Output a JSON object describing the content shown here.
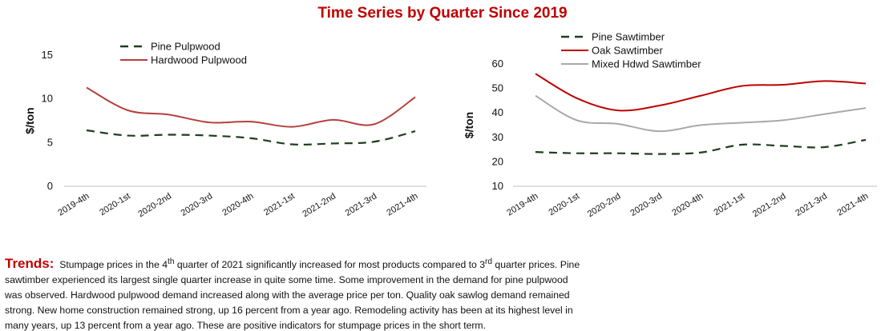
{
  "title": "Time Series by Quarter Since 2019",
  "colors": {
    "title": "#c00000",
    "pine": "#1e3d1e",
    "oak": "#c00000",
    "hardwood_pulp": "#b5403c",
    "mixed": "#a9a9a9",
    "trends_label": "#c00000"
  },
  "chart_data": [
    {
      "type": "line",
      "x": [
        "2019-4th",
        "2020-1st",
        "2020-2nd",
        "2020-3rd",
        "2020-4th",
        "2021-1st",
        "2021-2nd",
        "2021-3rd",
        "2021-4th"
      ],
      "ylabel": "$/ton",
      "ylim": [
        0,
        15
      ],
      "yticks": [
        0,
        5,
        10,
        15
      ],
      "legend_position": "top",
      "series": [
        {
          "name": "Pine Pulpwood",
          "style": "dashed",
          "values": [
            6.4,
            5.8,
            5.9,
            5.8,
            5.5,
            4.8,
            4.9,
            5.1,
            6.3
          ]
        },
        {
          "name": "Hardwood Pulpwood",
          "style": "solid",
          "values": [
            11.3,
            8.7,
            8.2,
            7.3,
            7.4,
            6.8,
            7.6,
            7.1,
            10.2
          ]
        }
      ]
    },
    {
      "type": "line",
      "x": [
        "2019-4th",
        "2020-1st",
        "2020-2nd",
        "2020-3rd",
        "2020-4th",
        "2021-1st",
        "2021-2nd",
        "2021-3rd",
        "2021-4th"
      ],
      "ylabel": "$/ton",
      "ylim": [
        10,
        60
      ],
      "yticks": [
        10,
        20,
        30,
        40,
        50,
        60
      ],
      "legend_position": "top",
      "series": [
        {
          "name": "Pine Sawtimber",
          "style": "dashed",
          "values": [
            24,
            23.5,
            23.5,
            23.2,
            23.8,
            27,
            26.5,
            26,
            29
          ]
        },
        {
          "name": "Oak Sawtimber",
          "style": "solid",
          "values": [
            56,
            46,
            41,
            43,
            47,
            51,
            51.5,
            53,
            52
          ]
        },
        {
          "name": "Mixed Hdwd Sawtimber",
          "style": "solid",
          "values": [
            47,
            37,
            35.5,
            32.5,
            35,
            36,
            37,
            39.5,
            42
          ]
        }
      ]
    }
  ],
  "trends": {
    "label": "Trends:",
    "line1_a": "Stumpage prices in the 4",
    "line1_sup1": "th",
    "line1_b": " quarter of 2021 significantly increased for most products compared to 3",
    "line1_sup2": "rd",
    "line1_c": " quarter prices. Pine",
    "line2": "sawtimber experienced its largest single quarter increase in quite some time. Some improvement in the demand for pine pulpwood",
    "line3": "was observed. Hardwood pulpwood demand increased along with the average price per ton. Quality oak sawlog demand remained",
    "line4": "strong. New home construction remained strong, up 16 percent from a year ago. Remodeling activity has been at its highest level in",
    "line5": "many years, up 13 percent from a year ago. These are positive indicators for stumpage prices in the short term."
  }
}
